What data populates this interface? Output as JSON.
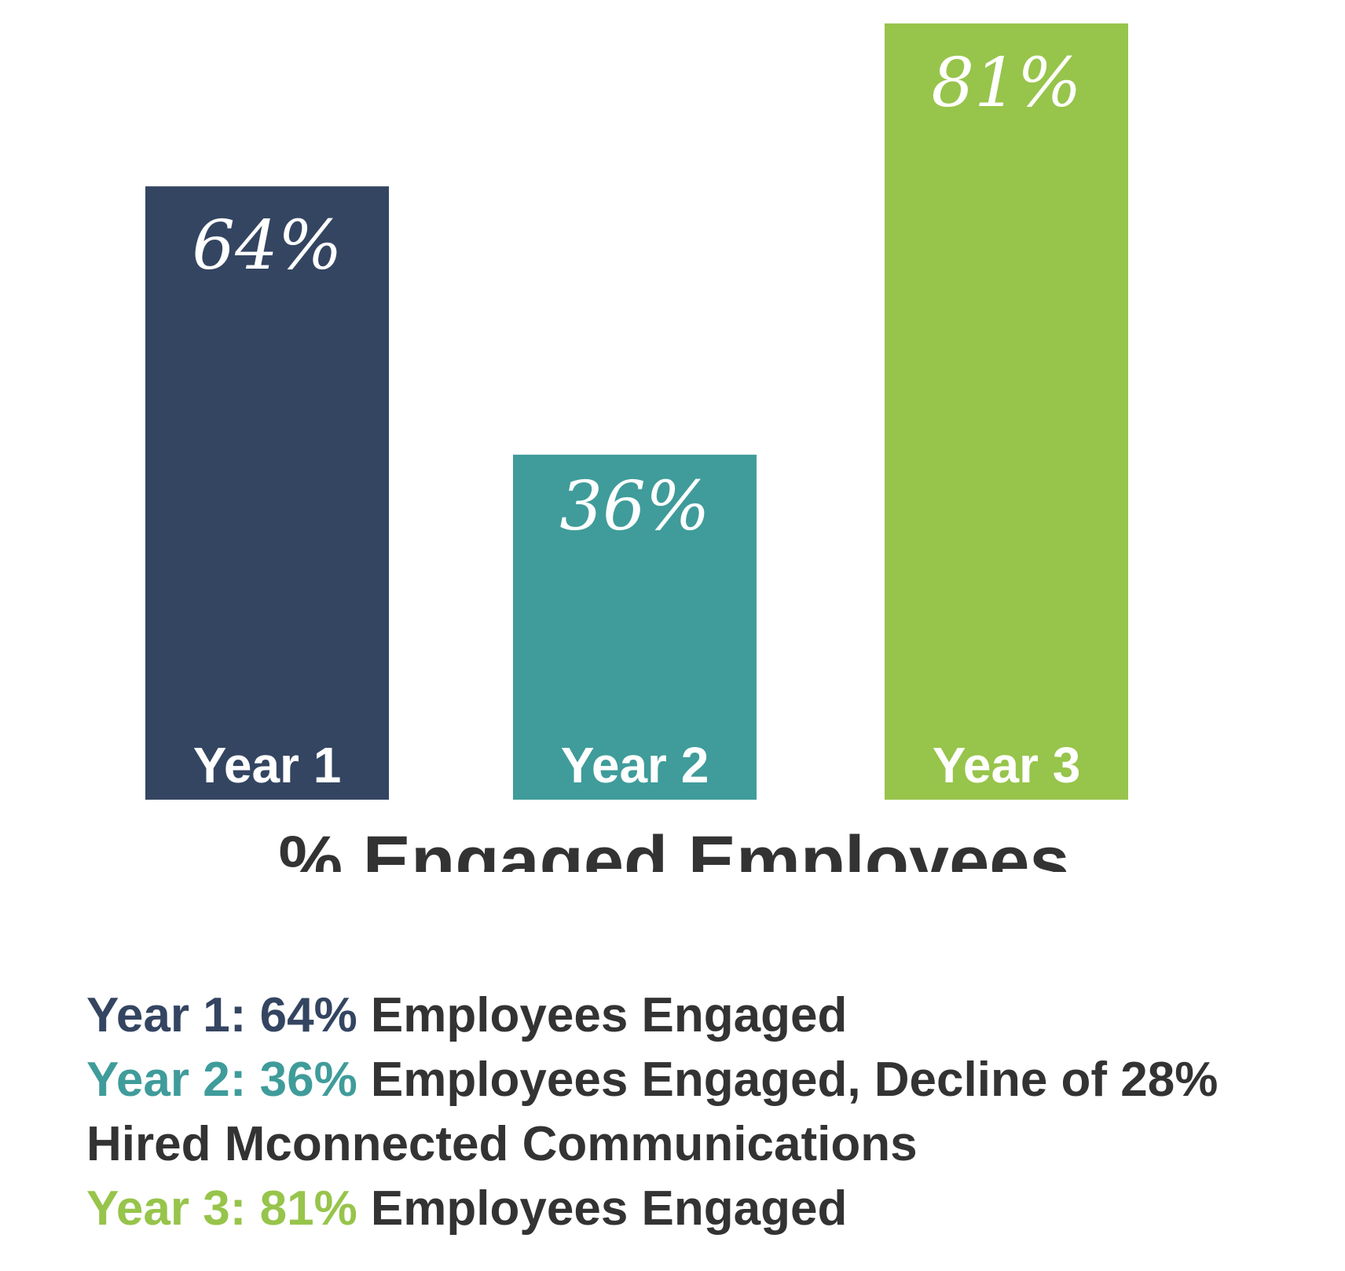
{
  "chart_data": {
    "type": "bar",
    "title": "% Engaged Employees",
    "categories": [
      "Year 1",
      "Year 2",
      "Year 3"
    ],
    "values": [
      64,
      36,
      81
    ],
    "value_labels": [
      "64%",
      "36%",
      "81%"
    ],
    "colors": [
      "#344561",
      "#3f9c9a",
      "#97c44b"
    ],
    "ylim": [
      0,
      100
    ],
    "grid": false
  },
  "notes": [
    {
      "lead": "Year 1: 64%",
      "rest": " Employees Engaged",
      "lead_color": "#344561"
    },
    {
      "lead": "Year 2: 36%",
      "rest": " Employees Engaged, Decline of 28%",
      "lead_color": "#3f9c9a"
    },
    {
      "lead": "",
      "rest": "Hired Mconnected Communications",
      "lead_color": "#333333"
    },
    {
      "lead": "Year 3: 81%",
      "rest": " Employees Engaged",
      "lead_color": "#97c44b"
    }
  ]
}
